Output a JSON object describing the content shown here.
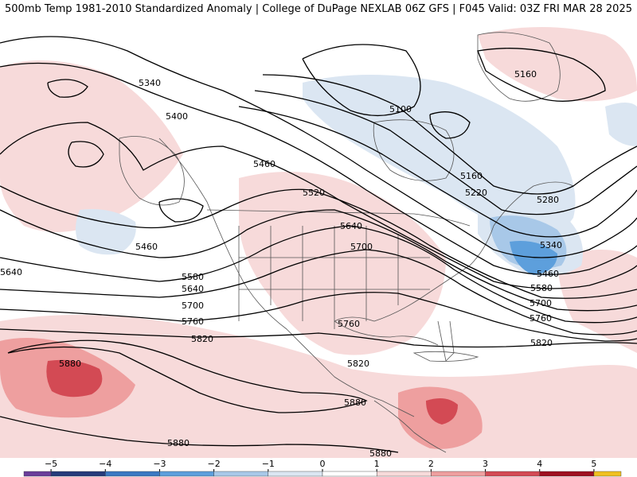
{
  "header": {
    "title": "500mb Temp 1981-2010 Standardized Anomaly | College of DuPage NEXLAB",
    "run_info": "06Z GFS | F045 Valid: 03Z FRI MAR 28 2025"
  },
  "colors": {
    "warm1": "#f7dada",
    "warm2": "#ee9f9f",
    "warm3": "#d34a54",
    "warm4": "#b81d2b",
    "cool1": "#dbe6f2",
    "cool2": "#a8c8e8",
    "cool3": "#5d9fdc",
    "contour": "#000000",
    "border": "#555555"
  },
  "contours": {
    "labels": [
      {
        "id": "c5340-nw",
        "text": "5340"
      },
      {
        "id": "c5400",
        "text": "5400"
      },
      {
        "id": "c5100",
        "text": "5100"
      },
      {
        "id": "c5160-ne",
        "text": "5160"
      },
      {
        "id": "c5460-w",
        "text": "5460"
      },
      {
        "id": "c5520",
        "text": "5520"
      },
      {
        "id": "c5160-e",
        "text": "5160"
      },
      {
        "id": "c5220",
        "text": "5220"
      },
      {
        "id": "c5280",
        "text": "5280"
      },
      {
        "id": "c5640-c",
        "text": "5640"
      },
      {
        "id": "c5700-c",
        "text": "5700"
      },
      {
        "id": "c5340-e",
        "text": "5340"
      },
      {
        "id": "c5460-e",
        "text": "5460"
      },
      {
        "id": "c5460-sw",
        "text": "5460"
      },
      {
        "id": "c5640-w",
        "text": "5640"
      },
      {
        "id": "c5580-w",
        "text": "5580"
      },
      {
        "id": "c5640-sw",
        "text": "5640"
      },
      {
        "id": "c5580-e",
        "text": "5580"
      },
      {
        "id": "c5700-w",
        "text": "5700"
      },
      {
        "id": "c5700-e",
        "text": "5700"
      },
      {
        "id": "c5760-w",
        "text": "5760"
      },
      {
        "id": "c5760-c",
        "text": "5760"
      },
      {
        "id": "c5760-e",
        "text": "5760"
      },
      {
        "id": "c5820-w",
        "text": "5820"
      },
      {
        "id": "c5820-e",
        "text": "5820"
      },
      {
        "id": "c5820-c",
        "text": "5820"
      },
      {
        "id": "c5880-w",
        "text": "5880"
      },
      {
        "id": "c5880-c",
        "text": "5880"
      },
      {
        "id": "c5880-sw",
        "text": "5880"
      },
      {
        "id": "c5880-s",
        "text": "5880"
      }
    ]
  },
  "colorbar": {
    "ticks": [
      "−5",
      "−4",
      "−3",
      "−2",
      "−1",
      "0",
      "1",
      "2",
      "3",
      "4",
      "5"
    ],
    "min": -5.5,
    "max": 5.5,
    "segments": [
      {
        "from": -5.5,
        "to": -5,
        "color": "#6a3d9a"
      },
      {
        "from": -5,
        "to": -4,
        "color": "#253b7a"
      },
      {
        "from": -4,
        "to": -3,
        "color": "#3a78c2"
      },
      {
        "from": -3,
        "to": -2,
        "color": "#5d9fdc"
      },
      {
        "from": -2,
        "to": -1,
        "color": "#a8c8e8"
      },
      {
        "from": -1,
        "to": 0,
        "color": "#dbe6f2"
      },
      {
        "from": 0,
        "to": 1,
        "color": "#ffffff"
      },
      {
        "from": 1,
        "to": 2,
        "color": "#f7dada"
      },
      {
        "from": 2,
        "to": 3,
        "color": "#ee9f9f"
      },
      {
        "from": 3,
        "to": 4,
        "color": "#d34a54"
      },
      {
        "from": 4,
        "to": 5,
        "color": "#9e1020"
      },
      {
        "from": 5,
        "to": 5.5,
        "color": "#f0c020"
      }
    ]
  }
}
